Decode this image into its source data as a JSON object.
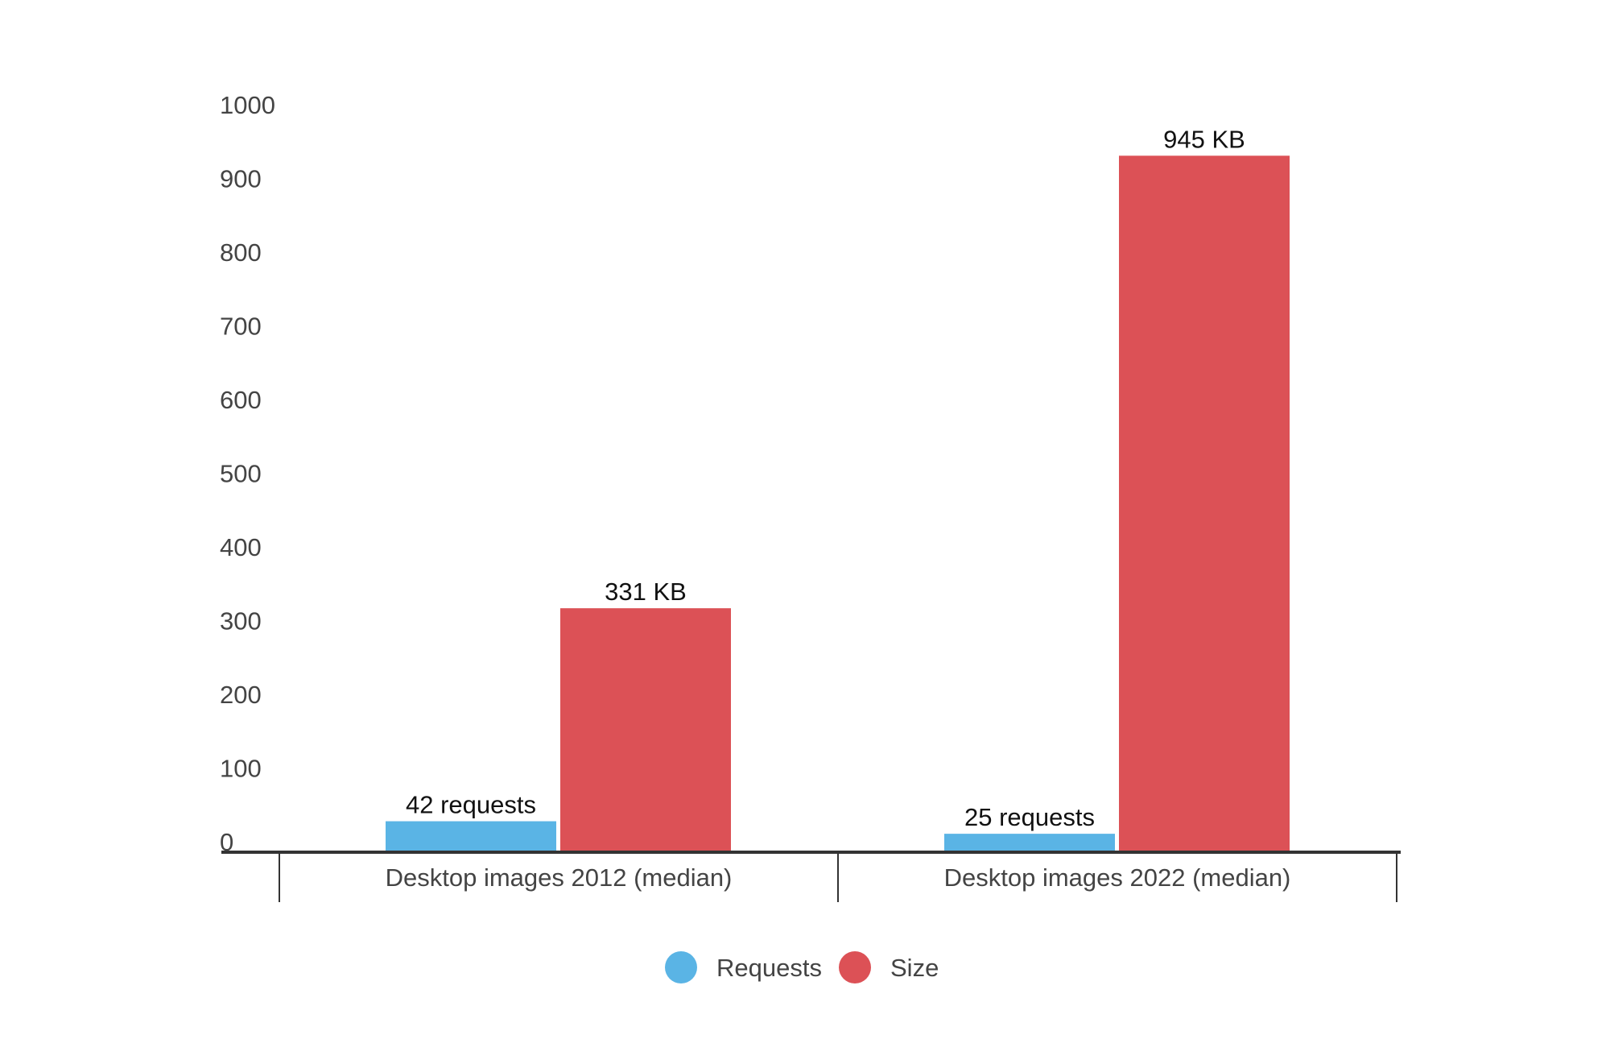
{
  "chart_data": {
    "type": "bar",
    "title": "",
    "xlabel": "",
    "ylabel": "",
    "categories": [
      "Desktop images 2012 (median)",
      "Desktop images 2022 (median)"
    ],
    "series": [
      {
        "name": "Requests",
        "color": "#5ab4e5",
        "values": [
          42,
          25
        ],
        "data_labels": [
          "42 requests",
          "25 requests"
        ]
      },
      {
        "name": "Size",
        "color": "#dc5156",
        "values": [
          331,
          945
        ],
        "data_labels": [
          "331 KB",
          "945 KB"
        ]
      }
    ],
    "ylim": [
      0,
      1000
    ],
    "yticks": [
      0,
      100,
      200,
      300,
      400,
      500,
      600,
      700,
      800,
      900,
      1000
    ],
    "ytick_labels": [
      "0",
      "100",
      "200",
      "300",
      "400",
      "500",
      "600",
      "700",
      "800",
      "900",
      "1000"
    ],
    "grid": false,
    "legend": {
      "position": "bottom-center",
      "items": [
        "Requests",
        "Size"
      ]
    }
  }
}
